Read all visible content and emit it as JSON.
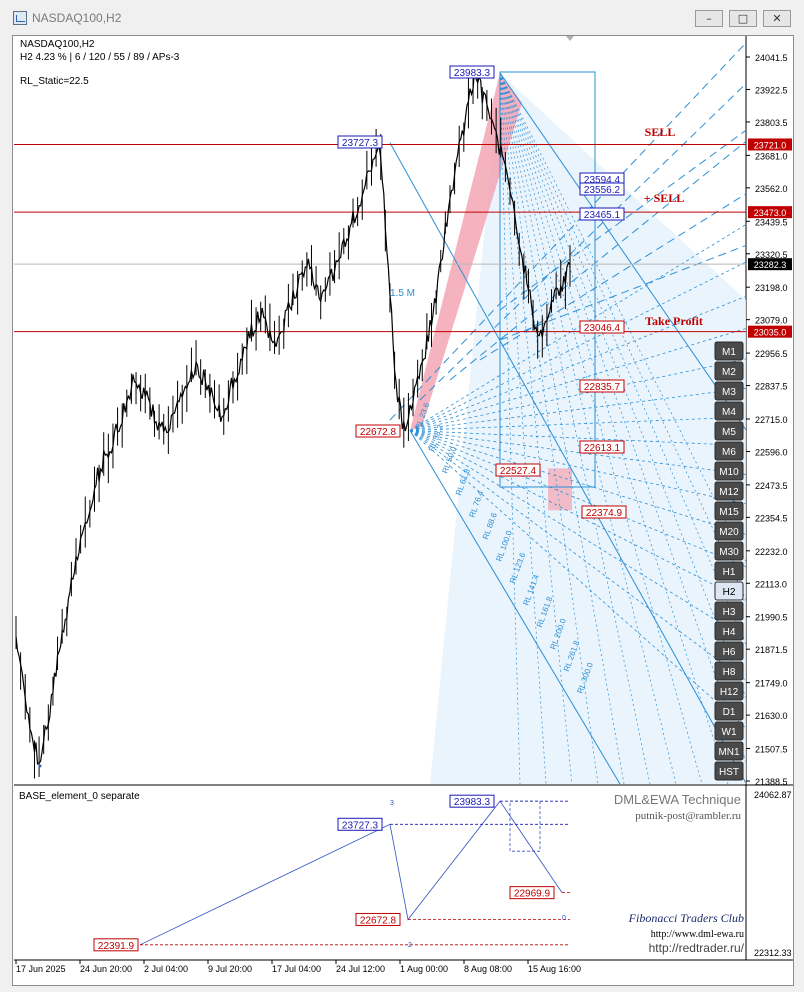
{
  "window": {
    "title": "NASDAQ100,H2"
  },
  "header": {
    "line1": "NASDAQ100,H2",
    "line2": "H2  4.23 %  |  6 / 120 / 55 / 89 / APs-3",
    "line3": "RL_Static=22.5"
  },
  "chart_data": [
    {
      "type": "line",
      "title": "",
      "symbol": "NASDAQ100",
      "timeframe": "H2",
      "x_ticks": [
        "17 Jun 2025",
        "24 Jun 20:00",
        "2 Jul 04:00",
        "9 Jul 20:00",
        "17 Jul 04:00",
        "24 Jul 12:00",
        "1 Aug 00:00",
        "8 Aug 08:00",
        "15 Aug 16:00"
      ],
      "y_ticks": [
        "24041.5",
        "23922.5",
        "23803.5",
        "23681.0",
        "23562.0",
        "23439.5",
        "23320.5",
        "23198.0",
        "23079.0",
        "22956.5",
        "22837.5",
        "22715.0",
        "22596.0",
        "22473.5",
        "22354.5",
        "22232.0",
        "22113.0",
        "21990.5",
        "21871.5",
        "21749.0",
        "21630.0",
        "21507.5",
        "21388.5"
      ],
      "ylim": [
        21388.5,
        24041.5
      ],
      "series": [
        {
          "values": [
            21920,
            21740,
            21550,
            21450,
            21600,
            21780,
            21950,
            22100,
            22250,
            22320,
            22480,
            22560,
            22620,
            22700,
            22780,
            22880,
            22820,
            22760,
            22700,
            22650,
            22720,
            22800,
            22860,
            22900,
            22850,
            22780,
            22720,
            22820,
            22900,
            22980,
            23050,
            23100,
            23030,
            22980,
            23080,
            23160,
            23240,
            23300,
            23200,
            23150,
            23250,
            23330,
            23400,
            23480,
            23560,
            23650,
            23727,
            23300,
            22850,
            22673,
            22760,
            22900,
            23000,
            23150,
            23350,
            23550,
            23700,
            23850,
            23983,
            23900,
            23800,
            23720,
            23640,
            23480,
            23300,
            23150,
            23000,
            23050,
            23150,
            23200,
            23282
          ]
        }
      ],
      "price_labels": [
        {
          "text": "23983.3",
          "value": 23983.3,
          "color": "#1a1ab8"
        },
        {
          "text": "23727.3",
          "value": 23727.3,
          "color": "#1a1ab8"
        },
        {
          "text": "22672.8",
          "value": 22672.8,
          "color": "#c00000"
        },
        {
          "text": "23594.4",
          "value": 23594.4,
          "color": "#1a1ab8"
        },
        {
          "text": "23556.2",
          "value": 23556.2,
          "color": "#1a1ab8"
        },
        {
          "text": "23465.1",
          "value": 23465.1,
          "color": "#1a1ab8"
        },
        {
          "text": "23046.4",
          "value": 23046.4,
          "color": "#c00000"
        },
        {
          "text": "22835.7",
          "value": 22835.7,
          "color": "#c00000"
        },
        {
          "text": "22613.1",
          "value": 22613.1,
          "color": "#c00000"
        },
        {
          "text": "22527.4",
          "value": 22527.4,
          "color": "#c00000"
        },
        {
          "text": "22374.9",
          "value": 22374.9,
          "color": "#c00000"
        }
      ],
      "levels": [
        {
          "name": "SELL",
          "value": 23721.0,
          "label": "23721.0"
        },
        {
          "name": "+ SELL",
          "value": 23473.0,
          "label": "23473.0"
        },
        {
          "name": "Take Profit",
          "value": 23035.0,
          "label": "23035.0"
        }
      ],
      "current_price": {
        "value": 23282.3,
        "label": "23282.3"
      },
      "fan_labels": [
        "23.6",
        "38.2",
        "50.0",
        "61.8",
        "76.4",
        "88.6",
        "100.0",
        "123.6",
        "141.4",
        "161.8",
        "200.0",
        "261.8",
        "300.0"
      ],
      "misc_label": "1.5 M"
    },
    {
      "type": "line",
      "title": "BASE_element_0 separate",
      "y_ticks": [
        "24062.87",
        "22312.33"
      ],
      "ylim": [
        22312.33,
        24062.87
      ],
      "points": [
        {
          "label": "22391.9",
          "value": 22391.9,
          "color": "#c00000"
        },
        {
          "label": "23727.3",
          "value": 23727.3,
          "color": "#1a1ab8"
        },
        {
          "label": "22672.8",
          "value": 22672.8,
          "color": "#c00000"
        },
        {
          "label": "23983.3",
          "value": 23983.3,
          "color": "#1a1ab8"
        },
        {
          "label": "22969.9",
          "value": 22969.9,
          "color": "#c00000"
        }
      ],
      "wave_marks": [
        "2",
        "3",
        "0"
      ]
    }
  ],
  "watermark": {
    "technique": "DML&EWA Technique",
    "email": "putnik-post@rambler.ru",
    "club": "Fibonacci Traders Club",
    "site1": "http://www.dml-ewa.ru",
    "site2": "http://redtrader.ru/"
  },
  "timeframes": [
    "M1",
    "M2",
    "M3",
    "M4",
    "M5",
    "M6",
    "M10",
    "M12",
    "M15",
    "M20",
    "M30",
    "H1",
    "H2",
    "H3",
    "H4",
    "H6",
    "H8",
    "H12",
    "D1",
    "W1",
    "MN1",
    "HST"
  ],
  "active_timeframe": "H2",
  "colors": {
    "sell": "#c00000",
    "fan": "#2b8fd6",
    "bull_zone": "#f2a0b0",
    "fan_fill": "#e6f2fb"
  }
}
